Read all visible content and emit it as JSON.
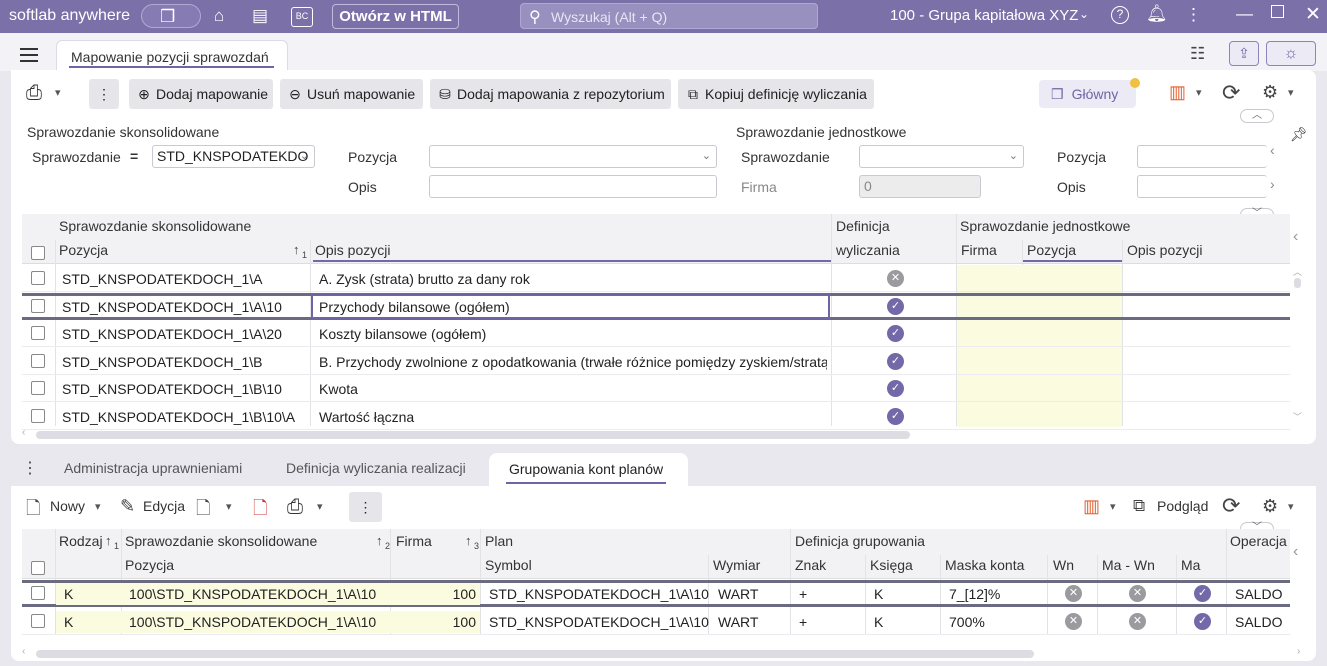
{
  "titlebar": {
    "brand": "softlab anywhere",
    "html_button": "Otwórz w HTML",
    "search_placeholder": "Wyszukaj (Alt + Q)",
    "company": "100 - Grupa kapitałowa XYZ",
    "tb_bc": "BC"
  },
  "tab": {
    "title": "Mapowanie pozycji sprawozdań"
  },
  "toolbar": {
    "add": "Dodaj mapowanie",
    "remove": "Usuń mapowanie",
    "add_repo": "Dodaj mapowania z repozytorium",
    "copy": "Kopiuj definicję wyliczania",
    "glowny": "Główny"
  },
  "filter": {
    "cons_title": "Sprawozdanie skonsolidowane",
    "unit_title": "Sprawozdanie jednostkowe",
    "sprawozdanie_label": "Sprawozdanie",
    "sprawozdanie_value": "STD_KNSPODATEKDO",
    "pozycja_label": "Pozycja",
    "opis_label": "Opis",
    "u_sprawozdanie_label": "Sprawozdanie",
    "u_firma_label": "Firma",
    "u_firma_value": "0",
    "u_pozycja_label": "Pozycja",
    "u_opis_label": "Opis",
    "op_symbol": "="
  },
  "grid1": {
    "group_cons": "Sprawozdanie skonsolidowane",
    "group_unit": "Sprawozdanie jednostkowe",
    "h_pozycja": "Pozycja",
    "sort_num": "1",
    "h_opis": "Opis pozycji",
    "h_def1": "Definicja",
    "h_def2": "wyliczania",
    "h_firma": "Firma",
    "h_upozycja": "Pozycja",
    "h_uopis": "Opis pozycji",
    "rows": [
      {
        "pozycja": "STD_KNSPODATEKDOCH_1\\A",
        "opis": "A. Zysk (strata) brutto za dany rok",
        "def": "x"
      },
      {
        "pozycja": "STD_KNSPODATEKDOCH_1\\A\\10",
        "opis": "Przychody bilansowe (ogółem)",
        "def": "ok"
      },
      {
        "pozycja": "STD_KNSPODATEKDOCH_1\\A\\20",
        "opis": "Koszty bilansowe (ogółem)",
        "def": "ok"
      },
      {
        "pozycja": "STD_KNSPODATEKDOCH_1\\B",
        "opis": "B. Przychody zwolnione z opodatkowania (trwałe różnice pomiędzy zyskiem/stratą",
        "def": "ok"
      },
      {
        "pozycja": "STD_KNSPODATEKDOCH_1\\B\\10",
        "opis": "Kwota",
        "def": "ok"
      },
      {
        "pozycja": "STD_KNSPODATEKDOCH_1\\B\\10\\A",
        "opis": "Wartość łączna",
        "def": "ok"
      }
    ]
  },
  "bottom_tabs": [
    "Administracja uprawnieniami",
    "Definicja wyliczania realizacji",
    "Grupowania kont planów"
  ],
  "btoolbar": {
    "new": "Nowy",
    "edit": "Edycja",
    "preview": "Podgląd"
  },
  "grid2": {
    "h_rodzaj": "Rodzaj",
    "s1": "1",
    "h_cons": "Sprawozdanie skonsolidowane",
    "s2": "2",
    "h_firma": "Firma",
    "s3": "3",
    "h_plan": "Plan",
    "h_def": "Definicja grupowania",
    "h_oper": "Operacja",
    "h_pozycja": "Pozycja",
    "h_symbol": "Symbol",
    "h_wymiar": "Wymiar",
    "h_znak": "Znak",
    "h_ksiega": "Księga",
    "h_maska": "Maska konta",
    "h_wn": "Wn",
    "h_mawn": "Ma - Wn",
    "h_ma": "Ma",
    "rows": [
      {
        "rodzaj": "K",
        "pozycja": "100\\STD_KNSPODATEKDOCH_1\\A\\10",
        "firma": "100",
        "symbol": "STD_KNSPODATEKDOCH_1\\A\\10",
        "wymiar": "WART",
        "znak": "+",
        "ksiega": "K",
        "maska": "7_[12]%",
        "oper": "SALDO"
      },
      {
        "rodzaj": "K",
        "pozycja": "100\\STD_KNSPODATEKDOCH_1\\A\\10",
        "firma": "100",
        "symbol": "STD_KNSPODATEKDOCH_1\\A\\10",
        "wymiar": "WART",
        "znak": "+",
        "ksiega": "K",
        "maska": "700%",
        "oper": "SALDO"
      }
    ]
  }
}
